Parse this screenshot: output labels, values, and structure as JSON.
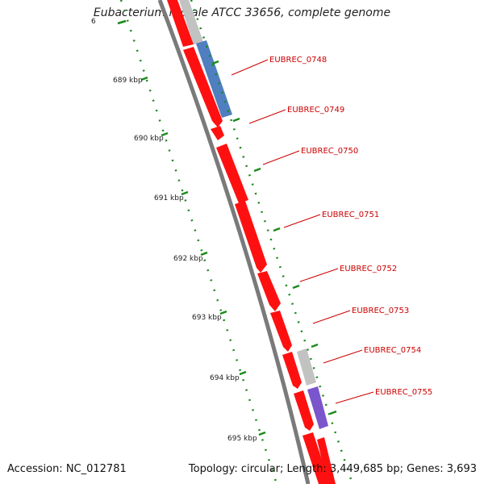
{
  "title": "Eubacterium rectale ATCC 33656, complete genome",
  "accession": "Accession: NC_012781",
  "topology": "Topology: circular; Length: 3,449,685 bp; Genes: 3,693",
  "kbp_labels": [
    {
      "text": "6"
    },
    {
      "text": "689 kbp"
    },
    {
      "text": "690 kbp"
    },
    {
      "text": "691 kbp"
    },
    {
      "text": "692 kbp"
    },
    {
      "text": "693 kbp"
    },
    {
      "text": "694 kbp"
    },
    {
      "text": "695 kbp"
    }
  ],
  "gene_labels": [
    {
      "text": "EUBREC_0748"
    },
    {
      "text": "EUBREC_0749"
    },
    {
      "text": "EUBREC_0750"
    },
    {
      "text": "EUBREC_0751"
    },
    {
      "text": "EUBREC_0752"
    },
    {
      "text": "EUBREC_0753"
    },
    {
      "text": "EUBREC_0754"
    },
    {
      "text": "EUBREC_0755"
    }
  ],
  "colors": {
    "cds": "#ff1010",
    "rna_blue": "#4f7fbf",
    "rna_purple": "#7a55cc",
    "unknown_grey": "#c2c2c2",
    "backbone": "#7a7a7a",
    "tick_green": "#1a8a1a",
    "label_red": "#cc0000"
  }
}
